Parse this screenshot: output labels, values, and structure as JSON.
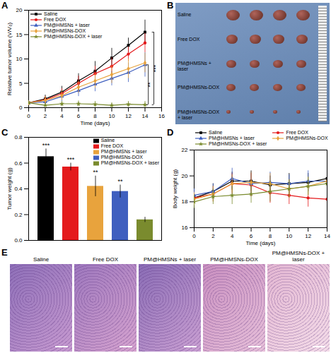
{
  "chart_data": [
    {
      "title": "A",
      "type": "line",
      "x": [
        0,
        2,
        4,
        6,
        8,
        10,
        12,
        14
      ],
      "xlim": [
        0,
        16
      ],
      "xticks": [
        0,
        2,
        4,
        6,
        8,
        10,
        12,
        14,
        16
      ],
      "ylim": [
        0,
        20
      ],
      "yticks": [
        0,
        5,
        10,
        15,
        20
      ],
      "x_label": "Time (days)",
      "y_label": "Relative tumor volume (V/V₀)",
      "legend": "top-left",
      "series": [
        {
          "name": "Saline",
          "color": "#000000",
          "marker": "square",
          "values": [
            1,
            1.8,
            3.2,
            5.5,
            7.5,
            10.2,
            12.8,
            15.5
          ],
          "errors": [
            0.2,
            0.8,
            1.2,
            1.5,
            2,
            2,
            1.5,
            2.5
          ]
        },
        {
          "name": "Free DOX",
          "color": "#e41a1c",
          "marker": "circle",
          "values": [
            1,
            1.6,
            2.9,
            5,
            7,
            8.5,
            11,
            13.3
          ],
          "errors": [
            0.2,
            0.7,
            1,
            1.5,
            1.5,
            1.8,
            1.5,
            2
          ]
        },
        {
          "name": "PM@HMSNs + laser",
          "color": "#3f5fbf",
          "marker": "triangle",
          "values": [
            1,
            1.2,
            2.3,
            3.5,
            4.8,
            6,
            7.2,
            8.8
          ],
          "errors": [
            0.2,
            0.6,
            1,
            1.2,
            1.5,
            1.5,
            2,
            2.5
          ]
        },
        {
          "name": "PM@HMSNs-DOX",
          "color": "#e8a33d",
          "marker": "diamond",
          "values": [
            1,
            1.5,
            2.5,
            4.2,
            5.5,
            6.8,
            8,
            9.2
          ],
          "errors": [
            0.2,
            0.8,
            1,
            1.2,
            1.5,
            1.8,
            2,
            2
          ]
        },
        {
          "name": "PM@HMSNs-DOX + laser",
          "color": "#7a8b2e",
          "marker": "star",
          "values": [
            1,
            0.5,
            0.8,
            0.8,
            0.7,
            0.5,
            0.7,
            0.6
          ],
          "errors": [
            0.2,
            0.4,
            0.5,
            0.6,
            0.6,
            0.5,
            0.6,
            0.7
          ]
        }
      ],
      "annotations": [
        {
          "text": "**",
          "between": [
            "PM@HMSNs + laser",
            "PM@HMSNs-DOX + laser"
          ]
        },
        {
          "text": "***",
          "between": [
            "Saline",
            "PM@HMSNs-DOX + laser"
          ]
        }
      ]
    },
    {
      "title": "C",
      "type": "bar",
      "categories": [
        "Saline",
        "Free DOX",
        "PM@HMSNs + laser",
        "PM@HMSNs-DOX",
        "PM@HMSNs-DOX + laser"
      ],
      "values": [
        0.65,
        0.57,
        0.42,
        0.38,
        0.16
      ],
      "errors": [
        0.06,
        0.03,
        0.08,
        0.05,
        0.02
      ],
      "colors": [
        "#000000",
        "#e41a1c",
        "#e8a33d",
        "#3f5fbf",
        "#7a8b2e"
      ],
      "significance": [
        "***",
        "***",
        "**",
        "**",
        null
      ],
      "ylim": [
        0,
        0.8
      ],
      "yticks": [
        {
          "value": 0,
          "label": "0.0"
        },
        {
          "value": 0.2,
          "label": "0.2"
        },
        {
          "value": 0.4,
          "label": "0.4"
        },
        {
          "value": 0.6,
          "label": "0.6"
        },
        {
          "value": 0.8,
          "label": "0.8"
        }
      ],
      "y_label": "Tumor weight (g)",
      "tick_labels": "y",
      "legend": "top-right"
    },
    {
      "title": "D",
      "type": "line",
      "x": [
        0,
        2,
        4,
        6,
        8,
        10,
        12,
        14
      ],
      "xlim": [
        0,
        14
      ],
      "xticks": [
        0,
        2,
        4,
        6,
        8,
        10,
        12,
        14
      ],
      "ylim": [
        16,
        22
      ],
      "yticks": [
        16,
        18,
        20,
        22
      ],
      "x_label": "Time (days)",
      "y_label": "Body weight (g)",
      "legend": "top",
      "series": [
        {
          "name": "Saline",
          "color": "#000000",
          "marker": "square",
          "values": [
            18.3,
            18.8,
            19.6,
            19.6,
            19.3,
            19.4,
            19.5,
            19.8
          ],
          "errors": [
            0.5,
            0.6,
            0.7,
            0.8,
            0.7,
            0.8,
            0.7,
            0.6
          ]
        },
        {
          "name": "Free DOX",
          "color": "#e41a1c",
          "marker": "circle",
          "values": [
            18.3,
            18.6,
            19.4,
            19.3,
            18.7,
            18.5,
            18.3,
            18.2
          ],
          "errors": [
            0.5,
            0.6,
            0.8,
            0.9,
            0.8,
            0.7,
            0.7,
            0.6
          ]
        },
        {
          "name": "PM@HMSNs + laser",
          "color": "#3f5fbf",
          "marker": "triangle",
          "values": [
            18.5,
            18.8,
            19.8,
            19.4,
            19.5,
            19.4,
            19.6,
            19.6
          ],
          "errors": [
            0.5,
            0.6,
            0.8,
            0.9,
            0.8,
            0.7,
            0.8,
            0.7
          ]
        },
        {
          "name": "PM@HMSNs-DOX",
          "color": "#e8a33d",
          "marker": "diamond",
          "values": [
            18.2,
            18.6,
            19.4,
            19.5,
            19.4,
            19.0,
            19.2,
            19.6
          ],
          "errors": [
            0.5,
            0.6,
            0.7,
            0.8,
            0.8,
            0.7,
            0.7,
            0.6
          ]
        },
        {
          "name": "PM@HMSNs-DOX + laser",
          "color": "#7a8b2e",
          "marker": "star",
          "values": [
            18.0,
            18.4,
            18.5,
            18.6,
            18.8,
            19.0,
            19.2,
            19.4
          ],
          "errors": [
            0.5,
            0.6,
            0.7,
            0.7,
            0.8,
            0.7,
            0.7,
            0.6
          ]
        }
      ]
    }
  ],
  "photo_panels": [
    {
      "title": "B",
      "rows": [
        "Saline",
        "Free DOX",
        "PM@HMSNs + laser",
        "PM@HMSNs-DOX",
        "PM@HMSNs-DOX + laser"
      ]
    },
    {
      "title": "E",
      "images": [
        "Saline",
        "Free DOX",
        "PM@HMSNs + laser",
        "PM@HMSNs-DOX",
        "PM@HMSNs-DOX + laser"
      ]
    }
  ]
}
